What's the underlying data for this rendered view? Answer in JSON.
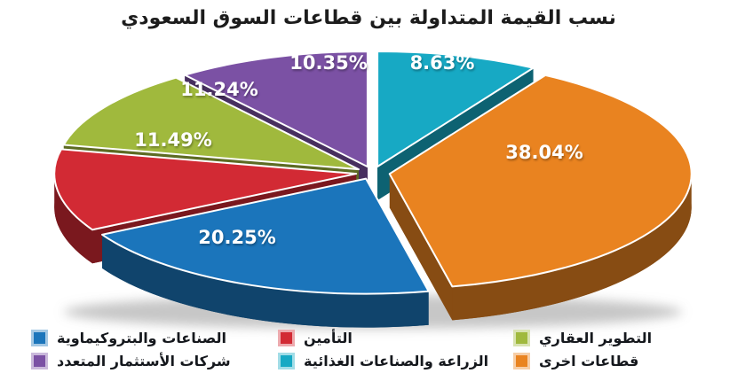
{
  "title": "نسب القيمة المتداولة بين قطاعات السوق السعودي",
  "chart_data": {
    "type": "pie",
    "style": "3d-exploded",
    "title": "نسب القيمة المتداولة بين قطاعات السوق السعودي",
    "unit": "%",
    "start_angle_deg": 0,
    "direction": "clockwise",
    "legend_position": "bottom",
    "slices": [
      {
        "label": "الزراعة والصناعات الغذائية",
        "value": 8.63,
        "display": "8.63%",
        "color": "#17A9C4"
      },
      {
        "label": "قطاعات اخرى",
        "value": 38.04,
        "display": "38.04%",
        "color": "#E98320"
      },
      {
        "label": "الصناعات والبتروكيماوية",
        "value": 20.25,
        "display": "20.25%",
        "color": "#1B75BB"
      },
      {
        "label": "التأمين",
        "value": 11.49,
        "display": "11.49%",
        "color": "#D22A34"
      },
      {
        "label": "التطوير العقاري",
        "value": 11.24,
        "display": "11.24%",
        "color": "#A0B93D"
      },
      {
        "label": "شركات الأستثمار المتعدد",
        "value": 10.35,
        "display": "10.35%",
        "color": "#7B51A4"
      }
    ]
  },
  "legend": {
    "columns": [
      {
        "items": [
          {
            "label": "الصناعات والبتروكيماوية",
            "color": "#1B75BB"
          },
          {
            "label": "شركات الأستثمار المتعدد",
            "color": "#7B51A4"
          }
        ]
      },
      {
        "items": [
          {
            "label": "التأمين",
            "color": "#D22A34"
          },
          {
            "label": "الزراعة والصناعات الغذائية",
            "color": "#17A9C4"
          }
        ]
      },
      {
        "items": [
          {
            "label": "التطوير العقاري",
            "color": "#A0B93D"
          },
          {
            "label": "قطاعات اخرى",
            "color": "#E98320"
          }
        ]
      }
    ]
  }
}
